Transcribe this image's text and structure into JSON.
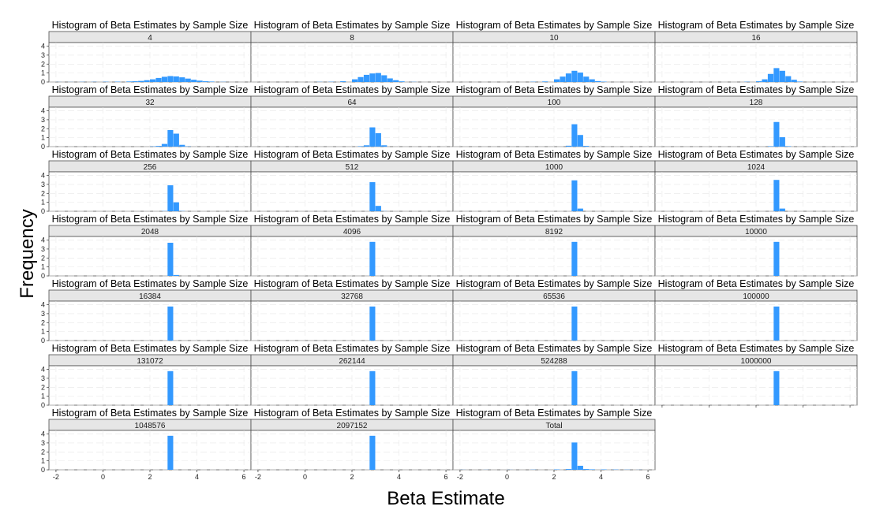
{
  "chart_data": {
    "type": "bar",
    "panel_title": "Histogram of Beta Estimates by Sample Size",
    "xlabel": "Beta Estimate",
    "ylabel": "Frequency",
    "xlim": [
      -2.3,
      6.3
    ],
    "ylim": [
      0,
      4.4
    ],
    "x_ticks": [
      -2,
      0,
      2,
      4,
      6
    ],
    "y_ticks": [
      0,
      1,
      2,
      3,
      4
    ],
    "bin_width": 0.25,
    "grid": true,
    "bar_color": "#3399ff",
    "panels": [
      {
        "label": "4",
        "bins": [
          [
            -2.0,
            0.01
          ],
          [
            -1.5,
            0.01
          ],
          [
            -1.0,
            0.02
          ],
          [
            -0.5,
            0.02
          ],
          [
            0.0,
            0.03
          ],
          [
            0.5,
            0.04
          ],
          [
            1.0,
            0.06
          ],
          [
            1.25,
            0.08
          ],
          [
            1.5,
            0.12
          ],
          [
            1.75,
            0.2
          ],
          [
            2.0,
            0.3
          ],
          [
            2.25,
            0.45
          ],
          [
            2.5,
            0.58
          ],
          [
            2.75,
            0.66
          ],
          [
            3.0,
            0.62
          ],
          [
            3.25,
            0.52
          ],
          [
            3.5,
            0.38
          ],
          [
            3.75,
            0.25
          ],
          [
            4.0,
            0.15
          ],
          [
            4.25,
            0.08
          ],
          [
            4.5,
            0.05
          ],
          [
            5.0,
            0.02
          ]
        ]
      },
      {
        "label": "8",
        "bins": [
          [
            0.5,
            0.02
          ],
          [
            1.0,
            0.03
          ],
          [
            1.5,
            0.08
          ],
          [
            2.0,
            0.3
          ],
          [
            2.25,
            0.55
          ],
          [
            2.5,
            0.8
          ],
          [
            2.75,
            0.95
          ],
          [
            3.0,
            1.0
          ],
          [
            3.25,
            0.75
          ],
          [
            3.5,
            0.4
          ],
          [
            3.75,
            0.2
          ],
          [
            4.0,
            0.07
          ],
          [
            4.5,
            0.02
          ]
        ]
      },
      {
        "label": "10",
        "bins": [
          [
            1.0,
            0.03
          ],
          [
            1.5,
            0.06
          ],
          [
            2.0,
            0.3
          ],
          [
            2.25,
            0.6
          ],
          [
            2.5,
            0.95
          ],
          [
            2.75,
            1.25
          ],
          [
            3.0,
            1.05
          ],
          [
            3.25,
            0.6
          ],
          [
            3.5,
            0.3
          ],
          [
            3.75,
            0.1
          ],
          [
            4.0,
            0.04
          ]
        ]
      },
      {
        "label": "16",
        "bins": [
          [
            1.5,
            0.03
          ],
          [
            2.0,
            0.08
          ],
          [
            2.25,
            0.3
          ],
          [
            2.5,
            0.9
          ],
          [
            2.75,
            1.55
          ],
          [
            3.0,
            1.25
          ],
          [
            3.25,
            0.65
          ],
          [
            3.5,
            0.25
          ],
          [
            3.75,
            0.05
          ]
        ]
      },
      {
        "label": "32",
        "bins": [
          [
            2.0,
            0.03
          ],
          [
            2.25,
            0.08
          ],
          [
            2.5,
            0.3
          ],
          [
            2.75,
            1.85
          ],
          [
            3.0,
            1.45
          ],
          [
            3.25,
            0.2
          ],
          [
            3.5,
            0.03
          ]
        ]
      },
      {
        "label": "64",
        "bins": [
          [
            2.25,
            0.05
          ],
          [
            2.5,
            0.15
          ],
          [
            2.75,
            2.15
          ],
          [
            3.0,
            1.5
          ],
          [
            3.25,
            0.15
          ]
        ]
      },
      {
        "label": "100",
        "bins": [
          [
            2.5,
            0.1
          ],
          [
            2.75,
            2.5
          ],
          [
            3.0,
            1.3
          ],
          [
            3.25,
            0.08
          ]
        ]
      },
      {
        "label": "128",
        "bins": [
          [
            2.5,
            0.05
          ],
          [
            2.75,
            2.75
          ],
          [
            3.0,
            1.05
          ],
          [
            3.25,
            0.05
          ]
        ]
      },
      {
        "label": "256",
        "bins": [
          [
            2.5,
            0.03
          ],
          [
            2.75,
            2.9
          ],
          [
            3.0,
            1.0
          ],
          [
            3.25,
            0.03
          ]
        ]
      },
      {
        "label": "512",
        "bins": [
          [
            2.75,
            3.25
          ],
          [
            3.0,
            0.6
          ],
          [
            3.25,
            0.02
          ]
        ]
      },
      {
        "label": "1000",
        "bins": [
          [
            2.75,
            3.45
          ],
          [
            3.0,
            0.3
          ]
        ]
      },
      {
        "label": "1024",
        "bins": [
          [
            2.75,
            3.5
          ],
          [
            3.0,
            0.3
          ]
        ]
      },
      {
        "label": "2048",
        "bins": [
          [
            2.75,
            3.7
          ],
          [
            3.0,
            0.1
          ]
        ]
      },
      {
        "label": "4096",
        "bins": [
          [
            2.75,
            3.8
          ]
        ]
      },
      {
        "label": "8192",
        "bins": [
          [
            2.75,
            3.8
          ]
        ]
      },
      {
        "label": "10000",
        "bins": [
          [
            2.75,
            3.8
          ]
        ]
      },
      {
        "label": "16384",
        "bins": [
          [
            2.75,
            3.8
          ]
        ]
      },
      {
        "label": "32768",
        "bins": [
          [
            2.75,
            3.8
          ]
        ]
      },
      {
        "label": "65536",
        "bins": [
          [
            2.75,
            3.8
          ]
        ]
      },
      {
        "label": "100000",
        "bins": [
          [
            2.75,
            3.8
          ]
        ]
      },
      {
        "label": "131072",
        "bins": [
          [
            2.75,
            3.8
          ]
        ]
      },
      {
        "label": "262144",
        "bins": [
          [
            2.75,
            3.8
          ]
        ]
      },
      {
        "label": "524288",
        "bins": [
          [
            2.75,
            3.8
          ]
        ]
      },
      {
        "label": "1000000",
        "bins": [
          [
            2.75,
            3.8
          ]
        ]
      },
      {
        "label": "1048576",
        "bins": [
          [
            2.75,
            3.8
          ]
        ]
      },
      {
        "label": "2097152",
        "bins": [
          [
            2.75,
            3.8
          ]
        ]
      },
      {
        "label": "Total",
        "bins": [
          [
            -2.0,
            0.01
          ],
          [
            -1.0,
            0.01
          ],
          [
            0.0,
            0.01
          ],
          [
            1.0,
            0.02
          ],
          [
            2.0,
            0.04
          ],
          [
            2.5,
            0.08
          ],
          [
            2.75,
            3.05
          ],
          [
            3.0,
            0.45
          ],
          [
            3.25,
            0.08
          ],
          [
            3.5,
            0.05
          ],
          [
            4.0,
            0.04
          ],
          [
            4.5,
            0.03
          ],
          [
            5.0,
            0.02
          ],
          [
            5.5,
            0.01
          ]
        ]
      }
    ]
  }
}
